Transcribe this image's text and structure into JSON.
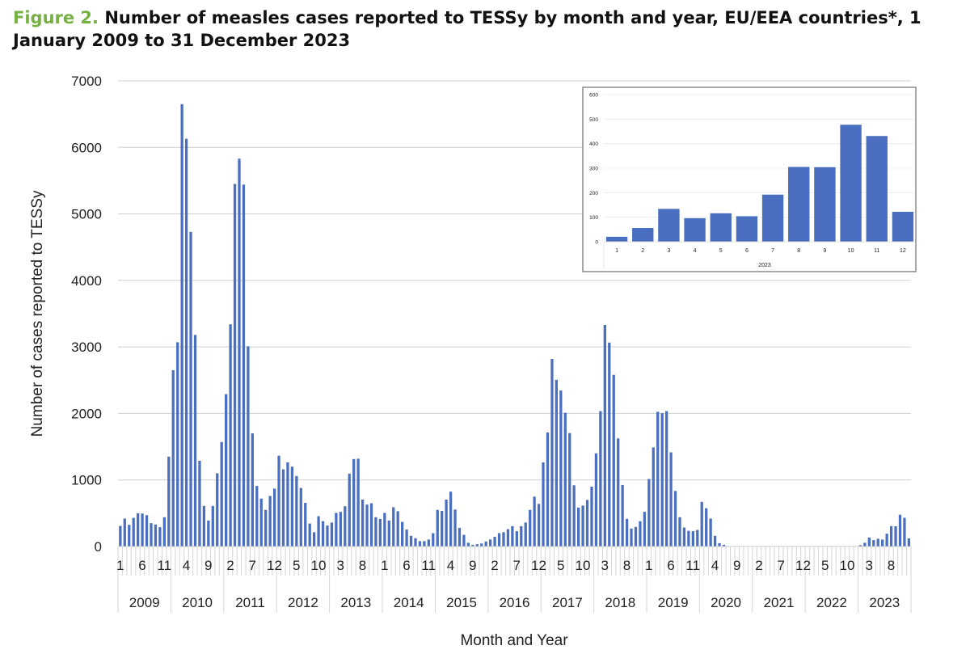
{
  "title": {
    "figure_label": "Figure 2.",
    "text": " Number of measles cases reported to TESSy by month and year, EU/EEA countries*, 1 January 2009 to 31 December 2023"
  },
  "colors": {
    "bar": "#4a6fc0",
    "grid": "#d0d0d0",
    "figure_label": "#77b143"
  },
  "chart_data": [
    {
      "type": "bar",
      "title": "Number of measles cases reported to TESSy by month and year, EU/EEA countries*, 1 January 2009 to 31 December 2023",
      "xlabel": "Month and Year",
      "ylabel": "Number of cases reported to TESSy",
      "ylim": [
        0,
        7000
      ],
      "yticks": [
        0,
        1000,
        2000,
        3000,
        4000,
        5000,
        6000,
        7000
      ],
      "grid": true,
      "years": [
        "2009",
        "2010",
        "2011",
        "2012",
        "2013",
        "2014",
        "2015",
        "2016",
        "2017",
        "2018",
        "2019",
        "2020",
        "2021",
        "2022",
        "2023"
      ],
      "month_tick_labels_every": 5,
      "values_by_year": {
        "2009": [
          310,
          420,
          325,
          430,
          500,
          495,
          470,
          350,
          330,
          290,
          440,
          1350
        ],
        "2010": [
          2650,
          3070,
          6650,
          6130,
          4730,
          3180,
          1290,
          610,
          390,
          610,
          1100,
          1570
        ],
        "2011": [
          2290,
          3340,
          5450,
          5830,
          5440,
          3010,
          1700,
          910,
          720,
          550,
          760,
          870
        ],
        "2012": [
          1365,
          1160,
          1265,
          1200,
          1060,
          880,
          655,
          345,
          215,
          455,
          380,
          315
        ],
        "2013": [
          360,
          505,
          520,
          605,
          1095,
          1315,
          1320,
          705,
          630,
          650,
          440,
          415
        ],
        "2014": [
          505,
          390,
          590,
          530,
          370,
          255,
          160,
          125,
          80,
          80,
          105,
          200
        ],
        "2015": [
          550,
          535,
          705,
          825,
          555,
          280,
          175,
          55,
          25,
          35,
          45,
          75
        ],
        "2016": [
          105,
          145,
          200,
          215,
          260,
          305,
          230,
          305,
          360,
          550,
          750,
          640
        ],
        "2017": [
          1265,
          1715,
          2820,
          2505,
          2345,
          2010,
          1705,
          920,
          585,
          615,
          700,
          900
        ],
        "2018": [
          1400,
          2035,
          3330,
          3065,
          2580,
          1625,
          925,
          415,
          270,
          295,
          380,
          520
        ],
        "2019": [
          1015,
          1490,
          2025,
          2005,
          2035,
          1415,
          835,
          440,
          285,
          235,
          230,
          250
        ],
        "2020": [
          670,
          575,
          420,
          160,
          50,
          25,
          0,
          0,
          0,
          0,
          0,
          0
        ],
        "2021": [
          0,
          0,
          0,
          0,
          0,
          0,
          0,
          0,
          0,
          0,
          0,
          0
        ],
        "2022": [
          0,
          0,
          0,
          0,
          0,
          0,
          0,
          0,
          0,
          0,
          0,
          0
        ],
        "2023": [
          20,
          56,
          134,
          96,
          116,
          104,
          192,
          305,
          304,
          477,
          431,
          122
        ]
      }
    },
    {
      "type": "bar",
      "title": "Inset: 2023",
      "xlabel": "2023",
      "ylabel": "",
      "ylim": [
        0,
        600
      ],
      "yticks": [
        0,
        100,
        200,
        300,
        400,
        500,
        600
      ],
      "grid": true,
      "categories": [
        "1",
        "2",
        "3",
        "4",
        "5",
        "6",
        "7",
        "8",
        "9",
        "10",
        "11",
        "12"
      ],
      "values": [
        20,
        56,
        134,
        96,
        116,
        104,
        192,
        305,
        304,
        477,
        431,
        122
      ]
    }
  ]
}
